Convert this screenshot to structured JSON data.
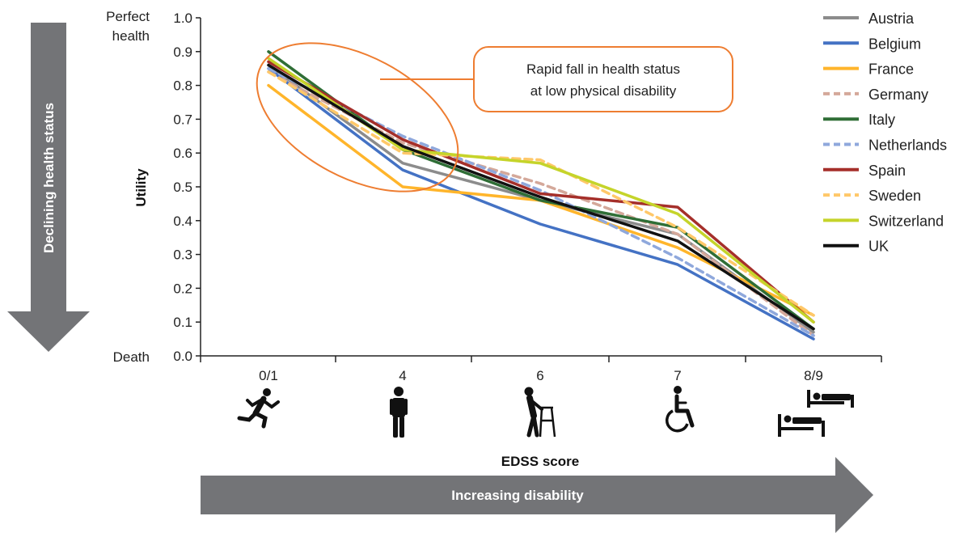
{
  "chart_data": {
    "type": "line",
    "categories": [
      "0/1",
      "4",
      "6",
      "7",
      "8/9"
    ],
    "ylabel": "Utility",
    "xlabel": "EDSS score",
    "ylim": [
      0,
      1.0
    ],
    "yticks": [
      "0.0",
      "0.1",
      "0.2",
      "0.3",
      "0.4",
      "0.5",
      "0.6",
      "0.7",
      "0.8",
      "0.9",
      "1.0"
    ],
    "y_top_label": [
      "Perfect",
      "health"
    ],
    "y_bottom_label": "Death",
    "grid": false,
    "legend": "right",
    "callout": [
      "Rapid fall in health status",
      "at low physical disability"
    ],
    "left_arrow_label": "Declining health status",
    "bottom_arrow_label": "Increasing disability",
    "category_icons": [
      "running-person-icon",
      "standing-person-icon",
      "walker-person-icon",
      "wheelchair-icon",
      "bedridden-icon"
    ],
    "series": [
      {
        "name": "Austria",
        "color": "#8c8c8c",
        "dash": false,
        "values": [
          0.86,
          0.57,
          0.46,
          0.36,
          0.07
        ]
      },
      {
        "name": "Belgium",
        "color": "#4472c4",
        "dash": false,
        "values": [
          0.85,
          0.55,
          0.39,
          0.27,
          0.05
        ]
      },
      {
        "name": "France",
        "color": "#ffb52b",
        "dash": false,
        "values": [
          0.8,
          0.5,
          0.46,
          0.32,
          0.12
        ]
      },
      {
        "name": "Germany",
        "color": "#d4a89a",
        "dash": true,
        "values": [
          0.84,
          0.63,
          0.51,
          0.36,
          0.06
        ]
      },
      {
        "name": "Italy",
        "color": "#2f6e36",
        "dash": false,
        "values": [
          0.9,
          0.61,
          0.46,
          0.38,
          0.08
        ]
      },
      {
        "name": "Netherlands",
        "color": "#8fa8dc",
        "dash": true,
        "values": [
          0.85,
          0.65,
          0.49,
          0.29,
          0.06
        ]
      },
      {
        "name": "Spain",
        "color": "#a52f2a",
        "dash": false,
        "values": [
          0.87,
          0.64,
          0.48,
          0.44,
          0.1
        ]
      },
      {
        "name": "Sweden",
        "color": "#ffc869",
        "dash": true,
        "values": [
          0.84,
          0.6,
          0.58,
          0.38,
          0.12
        ]
      },
      {
        "name": "Switzerland",
        "color": "#c5d42a",
        "dash": false,
        "values": [
          0.88,
          0.61,
          0.57,
          0.42,
          0.1
        ]
      },
      {
        "name": "UK",
        "color": "#111111",
        "dash": false,
        "values": [
          0.86,
          0.62,
          0.47,
          0.34,
          0.08
        ]
      }
    ]
  }
}
